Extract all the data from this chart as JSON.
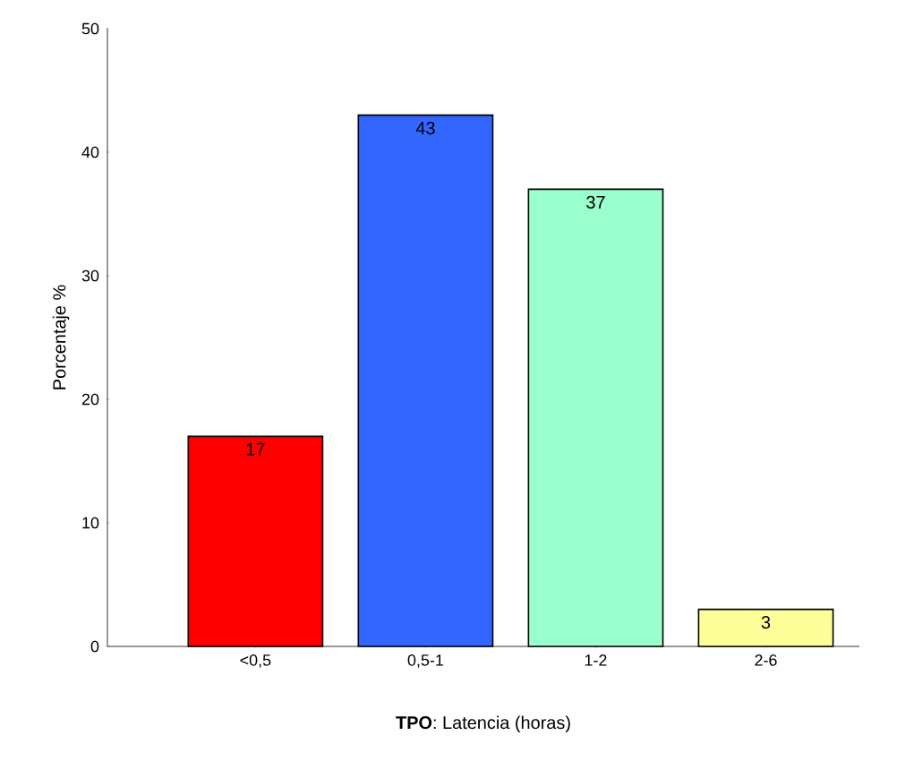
{
  "chart_data": {
    "type": "bar",
    "xlabel": "**TPO**: Latencia (horas)",
    "ylabel": "Porcentaje %",
    "categories": [
      "<0,5",
      "0,5-1",
      "1-2",
      "2-6"
    ],
    "values": [
      17,
      43,
      37,
      3
    ],
    "colors": [
      "#ff0000",
      "#3366ff",
      "#99ffcc",
      "#ffff99"
    ],
    "ylim": [
      0,
      50
    ],
    "yticks": [
      0,
      10,
      20,
      30,
      40,
      50
    ],
    "data_labels": true
  }
}
